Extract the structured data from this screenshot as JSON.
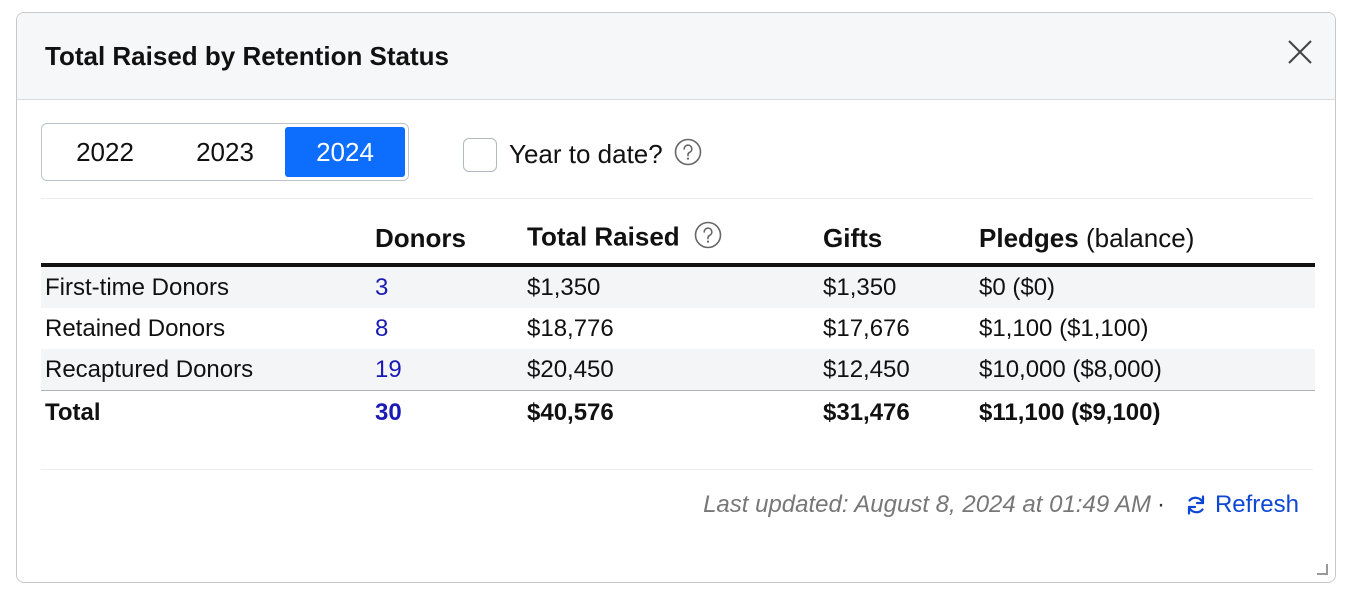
{
  "dialog": {
    "title": "Total Raised by Retention Status",
    "close_icon": "close-icon"
  },
  "year_selector": {
    "options": [
      "2022",
      "2023",
      "2024"
    ],
    "selected": "2024"
  },
  "ytd": {
    "label": "Year to date?",
    "checked": false,
    "help_icon": "question-circle-icon"
  },
  "table": {
    "headers": {
      "category": "",
      "donors": "Donors",
      "total_raised": "Total Raised",
      "gifts": "Gifts",
      "pledges": "Pledges",
      "pledges_suffix": "(balance)"
    },
    "rows": [
      {
        "category": "First-time Donors",
        "donors": "3",
        "total_raised": "$1,350",
        "gifts": "$1,350",
        "pledges": "$0 ($0)"
      },
      {
        "category": "Retained Donors",
        "donors": "8",
        "total_raised": "$18,776",
        "gifts": "$17,676",
        "pledges": "$1,100 ($1,100)"
      },
      {
        "category": "Recaptured Donors",
        "donors": "19",
        "total_raised": "$20,450",
        "gifts": "$12,450",
        "pledges": "$10,000 ($8,000)"
      }
    ],
    "total": {
      "category": "Total",
      "donors": "30",
      "total_raised": "$40,576",
      "gifts": "$31,476",
      "pledges": "$11,100 ($9,100)"
    }
  },
  "footer": {
    "last_updated": "Last updated: August 8, 2024 at 01:49 AM",
    "separator": "·",
    "refresh_label": "Refresh",
    "refresh_icon": "refresh-icon"
  },
  "colors": {
    "accent": "#0d6efd",
    "link": "#1a1ab4",
    "refresh": "#0d47d6",
    "muted": "#777777"
  }
}
